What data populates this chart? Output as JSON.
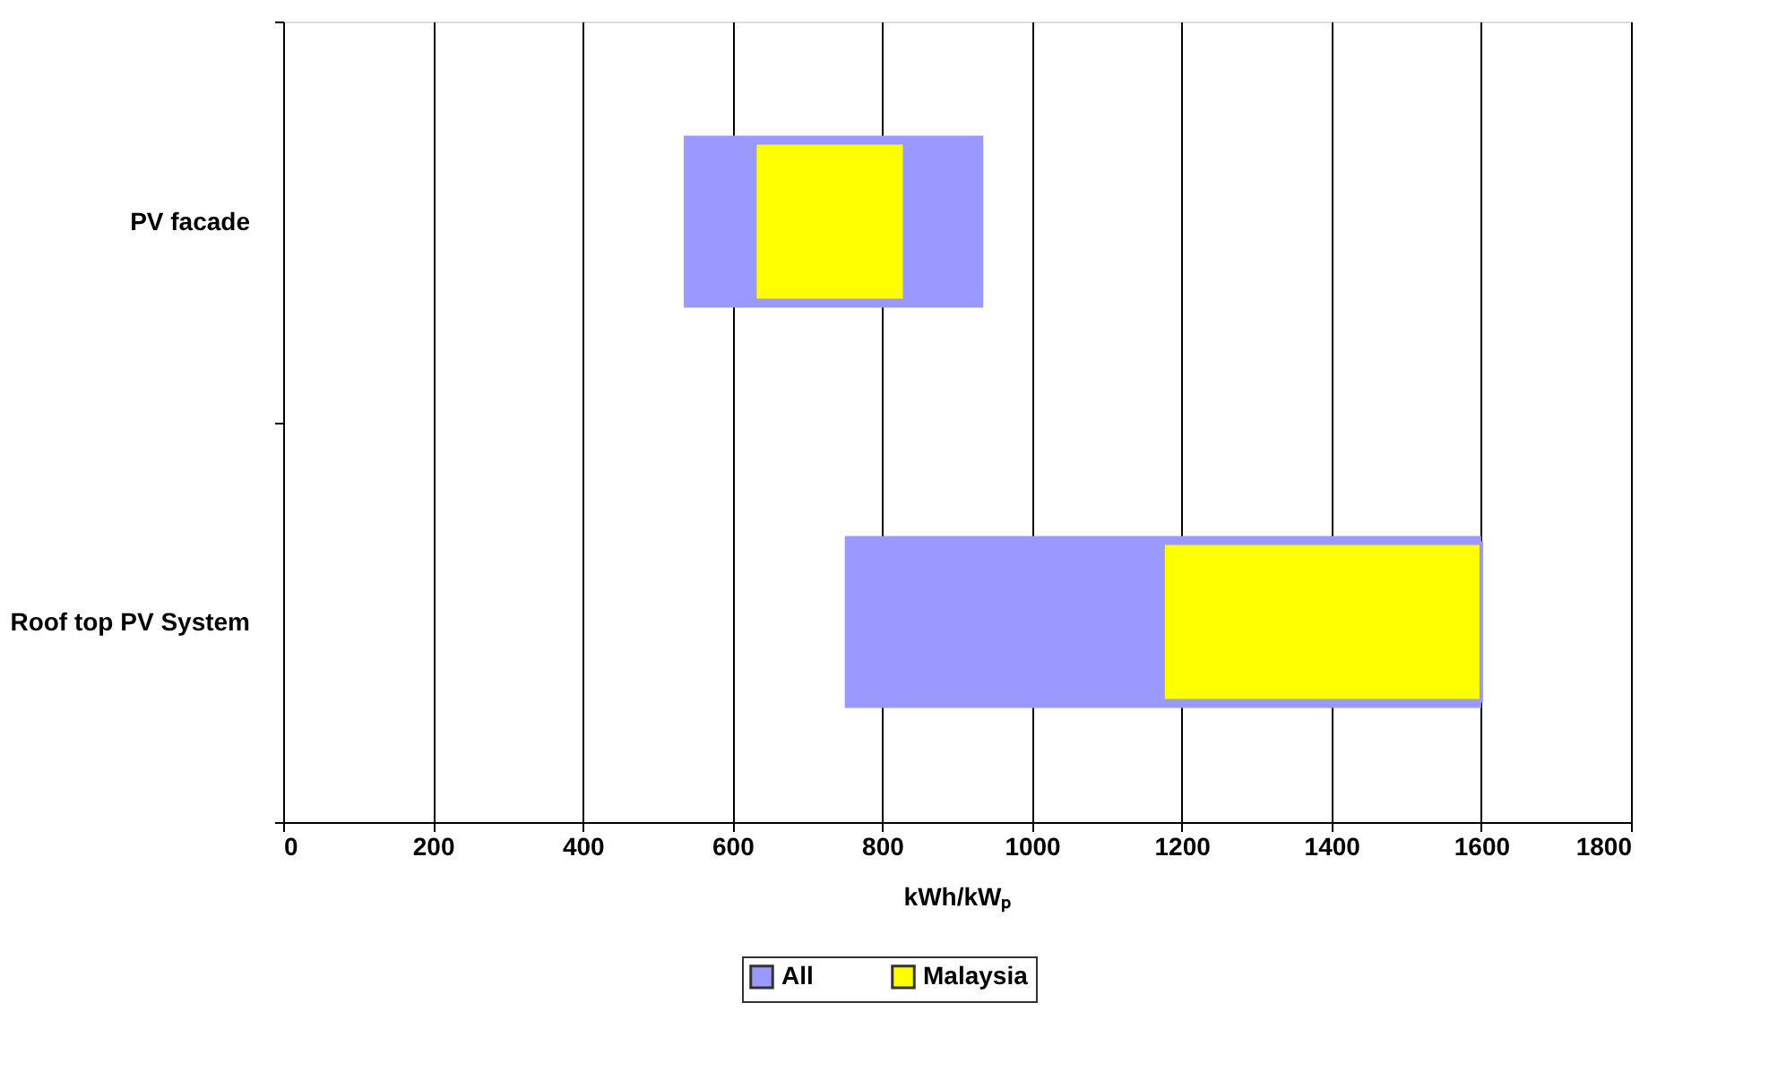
{
  "chart_data": {
    "type": "bar",
    "orientation": "horizontal",
    "xlabel": "kWh/kWₚ",
    "categories": [
      "PV facade",
      "Roof top PV System"
    ],
    "series": [
      {
        "name": "All",
        "color": "#9999ff",
        "base": [
          535,
          750
        ],
        "values": [
          400,
          850
        ]
      },
      {
        "name": "Malaysia",
        "color": "#ffff00",
        "base": [
          630,
          1175
        ],
        "values": [
          200,
          425
        ]
      }
    ],
    "xlim": [
      0,
      1800
    ],
    "xticks": [
      0,
      200,
      400,
      600,
      800,
      1000,
      1200,
      1400,
      1600,
      1800
    ],
    "grid": "x",
    "legend": "bottom"
  }
}
